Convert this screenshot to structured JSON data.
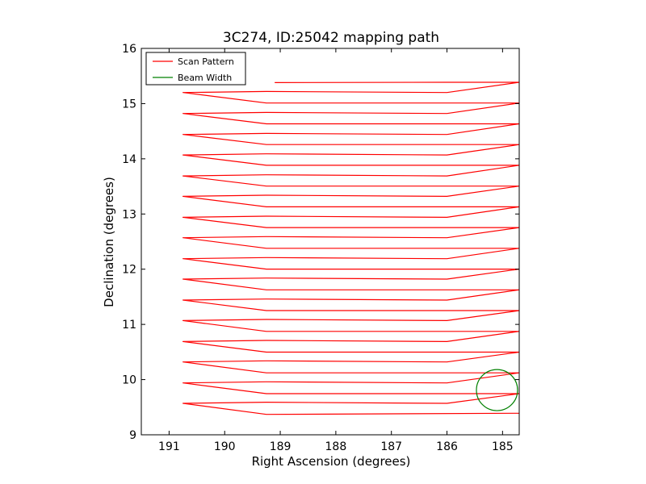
{
  "chart_data": {
    "type": "line",
    "title": "3C274, ID:25042 mapping path",
    "xlabel": "Right Ascension (degrees)",
    "ylabel": "Declination (degrees)",
    "xlim": [
      191.5,
      184.7
    ],
    "ylim": [
      9,
      16
    ],
    "x_inverted": true,
    "xticks": [
      191,
      190,
      189,
      188,
      187,
      186,
      185
    ],
    "yticks": [
      9,
      10,
      11,
      12,
      13,
      14,
      15,
      16
    ],
    "grid": false,
    "legend_position": "top-left",
    "series": [
      {
        "name": "Scan Pattern",
        "color": "#ff0000",
        "sweep": {
          "east_end_ra": 184.7,
          "first_line_dec": 9.37,
          "line_spacing_dec": 0.376,
          "line_count": 16,
          "rows": [
            {
              "dec_left": 9.57,
              "ra_left": 190.75,
              "ra_turn": 189.25
            },
            {
              "dec_left": 9.94,
              "ra_left": 190.75,
              "ra_turn": 189.25
            },
            {
              "dec_left": 10.32,
              "ra_left": 190.75,
              "ra_turn": 189.25
            },
            {
              "dec_left": 10.69,
              "ra_left": 190.75,
              "ra_turn": 189.25
            },
            {
              "dec_left": 11.07,
              "ra_left": 190.75,
              "ra_turn": 189.25
            },
            {
              "dec_left": 11.44,
              "ra_left": 190.75,
              "ra_turn": 189.25
            },
            {
              "dec_left": 11.82,
              "ra_left": 190.75,
              "ra_turn": 189.25
            },
            {
              "dec_left": 12.19,
              "ra_left": 190.75,
              "ra_turn": 189.25
            },
            {
              "dec_left": 12.57,
              "ra_left": 190.75,
              "ra_turn": 189.25
            },
            {
              "dec_left": 12.94,
              "ra_left": 190.75,
              "ra_turn": 189.25
            },
            {
              "dec_left": 13.32,
              "ra_left": 190.75,
              "ra_turn": 189.25
            },
            {
              "dec_left": 13.69,
              "ra_left": 190.75,
              "ra_turn": 189.25
            },
            {
              "dec_left": 14.07,
              "ra_left": 190.75,
              "ra_turn": 189.25
            },
            {
              "dec_left": 14.44,
              "ra_left": 190.75,
              "ra_turn": 189.25
            },
            {
              "dec_left": 14.82,
              "ra_left": 190.75,
              "ra_turn": 189.25
            },
            {
              "dec_left": 15.2,
              "ra_left": 190.75,
              "ra_turn": 189.25
            }
          ],
          "last_line": {
            "dec": 15.38,
            "ra_start": 189.1,
            "ra_end": 184.7
          }
        }
      },
      {
        "name": "Beam Width",
        "color": "#008000",
        "circle": {
          "ra_center": 185.1,
          "dec_center": 9.81,
          "radius_deg": 0.37
        }
      }
    ]
  }
}
